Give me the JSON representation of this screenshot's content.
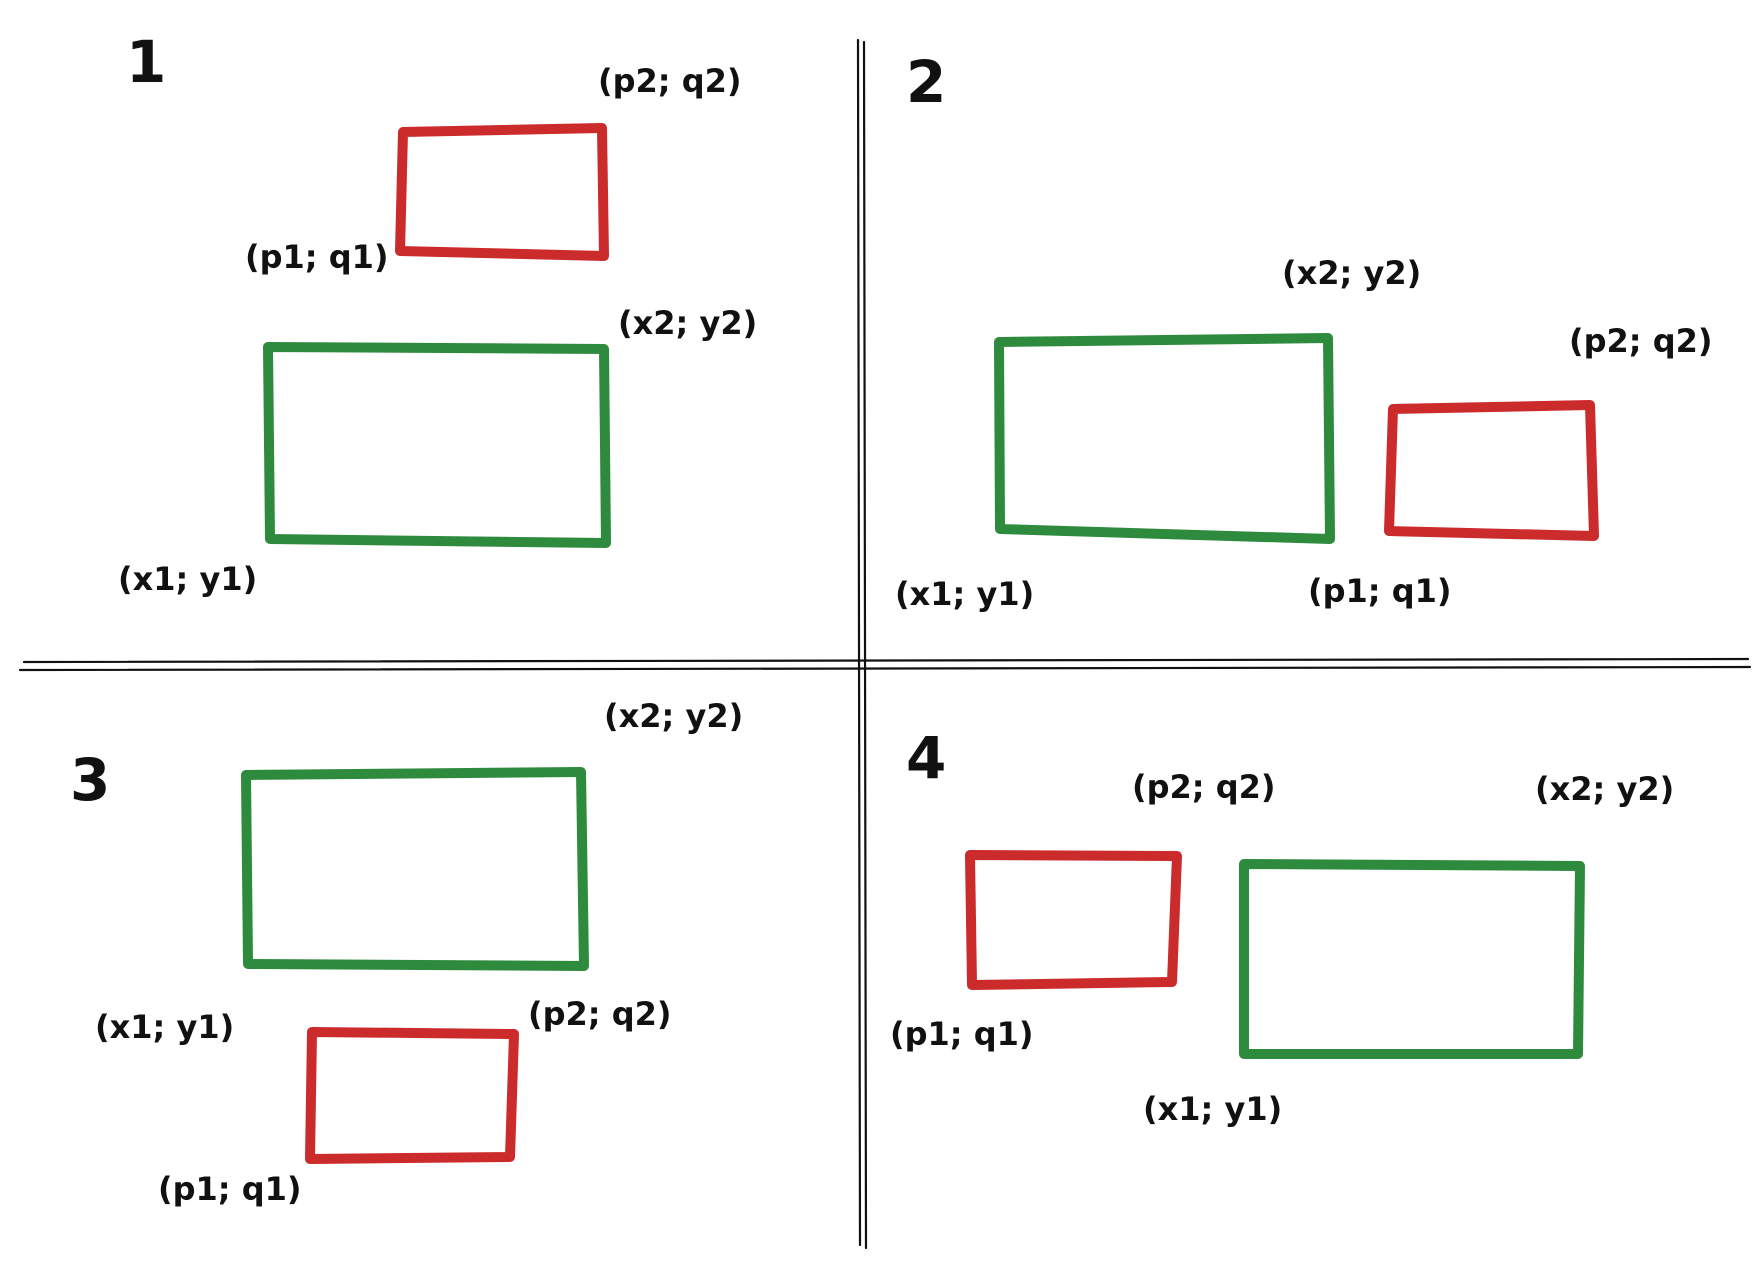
{
  "colors": {
    "reference_rect": "#2e8b3e",
    "other_rect": "#cc2b2b",
    "ink": "#111111"
  },
  "panels": [
    {
      "number": "1",
      "labels": {
        "x1y1": "(x1; y1)",
        "x2y2": "(x2; y2)",
        "p1q1": "(p1; q1)",
        "p2q2": "(p2; q2)"
      }
    },
    {
      "number": "2",
      "labels": {
        "x1y1": "(x1; y1)",
        "x2y2": "(x2; y2)",
        "p1q1": "(p1; q1)",
        "p2q2": "(p2; q2)"
      }
    },
    {
      "number": "3",
      "labels": {
        "x1y1": "(x1; y1)",
        "x2y2": "(x2; y2)",
        "p1q1": "(p1; q1)",
        "p2q2": "(p2; q2)"
      }
    },
    {
      "number": "4",
      "labels": {
        "x1y1": "(x1; y1)",
        "x2y2": "(x2; y2)",
        "p1q1": "(p1; q1)",
        "p2q2": "(p2; q2)"
      }
    }
  ]
}
